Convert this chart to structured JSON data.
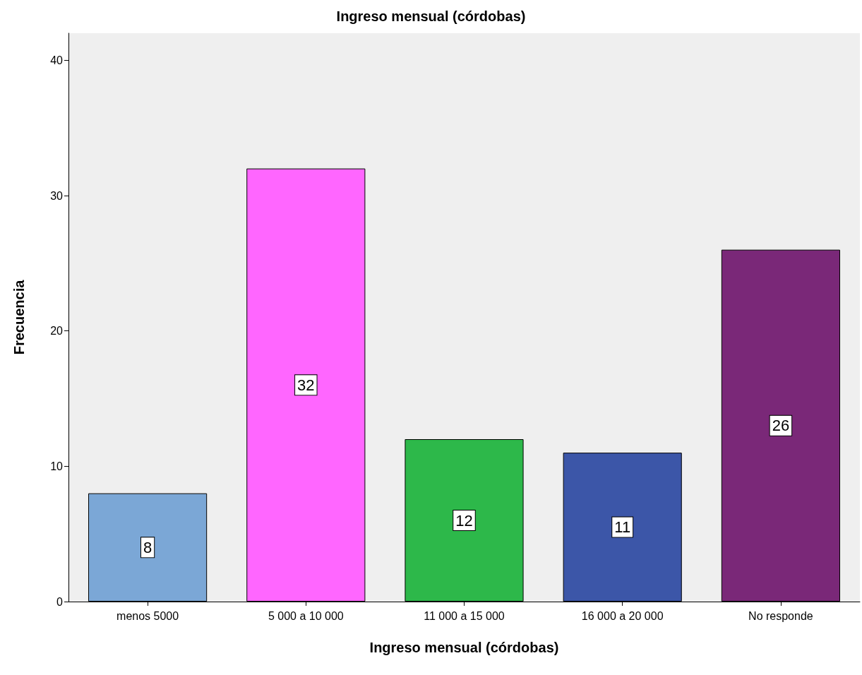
{
  "chart_data": {
    "type": "bar",
    "title": "Ingreso mensual (córdobas)",
    "xlabel": "Ingreso mensual (córdobas)",
    "ylabel": "Frecuencia",
    "categories": [
      "menos 5000",
      "5 000 a 10 000",
      "11 000 a 15 000",
      "16 000 a 20 000",
      "No responde"
    ],
    "values": [
      8,
      32,
      12,
      11,
      26
    ],
    "colors": [
      "#7ba7d6",
      "#ff66ff",
      "#2db84a",
      "#3c56a8",
      "#7a2878"
    ],
    "ylim": [
      0,
      42
    ],
    "yticks": [
      0,
      10,
      20,
      30,
      40
    ],
    "grid": false,
    "data_labels": true
  }
}
